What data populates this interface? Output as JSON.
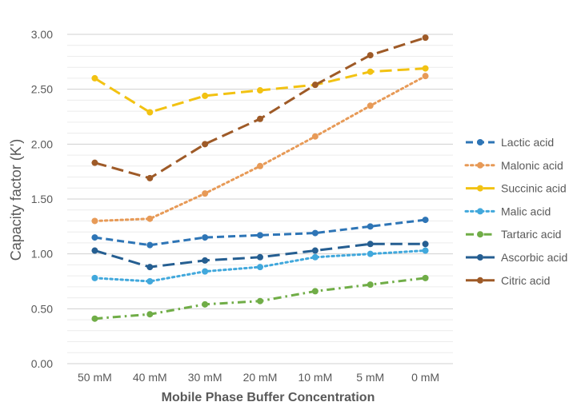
{
  "chart_data": {
    "type": "line",
    "title": "",
    "xlabel": "Mobile Phase Buffer Concentration",
    "ylabel": "Capacity factor (K')",
    "categories": [
      "50 mM",
      "40 mM",
      "30 mM",
      "20 mM",
      "10 mM",
      "5 mM",
      "0 mM"
    ],
    "ylim": [
      0,
      3.0
    ],
    "yticks": [
      "0.00",
      "0.50",
      "1.00",
      "1.50",
      "2.00",
      "2.50",
      "3.00"
    ],
    "grid": "horizontal major and minor",
    "legend_position": "right",
    "series": [
      {
        "name": "Lactic acid",
        "color": "#2E75B6",
        "dash": "dash",
        "values": [
          1.15,
          1.08,
          1.15,
          1.17,
          1.19,
          1.25,
          1.31
        ]
      },
      {
        "name": "Malonic acid",
        "color": "#E79A57",
        "dash": "dot",
        "values": [
          1.3,
          1.32,
          1.55,
          1.8,
          2.07,
          2.35,
          2.62
        ]
      },
      {
        "name": "Succinic acid",
        "color": "#F2C212",
        "dash": "longdash",
        "values": [
          2.6,
          2.29,
          2.44,
          2.49,
          2.54,
          2.66,
          2.69
        ]
      },
      {
        "name": "Malic acid",
        "color": "#41A8DC",
        "dash": "dot",
        "values": [
          0.78,
          0.75,
          0.84,
          0.88,
          0.97,
          1.0,
          1.03
        ]
      },
      {
        "name": "Tartaric acid",
        "color": "#70AD47",
        "dash": "dashdot",
        "values": [
          0.41,
          0.45,
          0.54,
          0.57,
          0.66,
          0.72,
          0.78
        ]
      },
      {
        "name": "Ascorbic acid",
        "color": "#255E91",
        "dash": "longdash",
        "values": [
          1.03,
          0.88,
          0.94,
          0.97,
          1.03,
          1.09,
          1.09
        ]
      },
      {
        "name": "Citric acid",
        "color": "#9E5A27",
        "dash": "longdash",
        "values": [
          1.83,
          1.69,
          2.0,
          2.23,
          2.54,
          2.81,
          2.97
        ]
      }
    ]
  }
}
